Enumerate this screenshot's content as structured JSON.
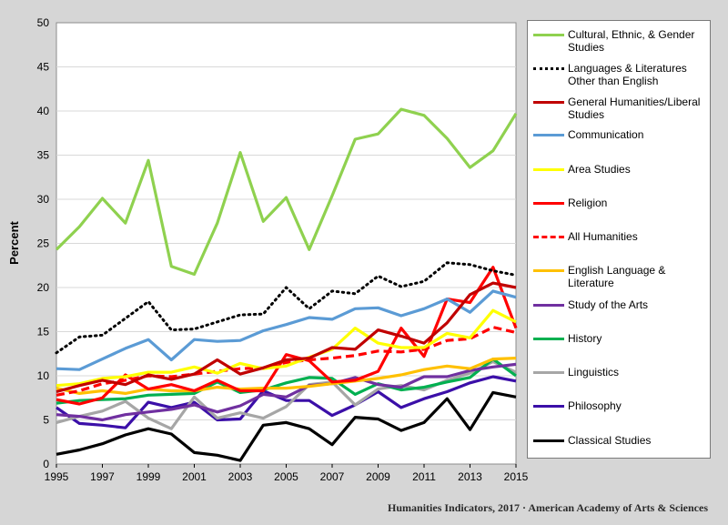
{
  "chart_data": {
    "type": "line",
    "title": "",
    "xlabel": "",
    "ylabel": "Percent",
    "xlim": [
      1995,
      2015
    ],
    "ylim": [
      0,
      50
    ],
    "x_ticks": [
      "1995",
      "1997",
      "1999",
      "2001",
      "2003",
      "2005",
      "2007",
      "2009",
      "2011",
      "2013",
      "2015"
    ],
    "y_ticks": [
      "0",
      "5",
      "10",
      "15",
      "20",
      "25",
      "30",
      "35",
      "40",
      "45",
      "50"
    ],
    "grid": true,
    "legend_position": "right",
    "x": [
      1995,
      1996,
      1997,
      1998,
      1999,
      2000,
      2001,
      2002,
      2003,
      2004,
      2005,
      2006,
      2007,
      2008,
      2009,
      2010,
      2011,
      2012,
      2013,
      2014,
      2015
    ],
    "series": [
      {
        "name": "Cultural, Ethnic, & Gender Studies",
        "color": "#8fd14f",
        "dash": "solid",
        "values": [
          24.3,
          26.9,
          30.1,
          27.3,
          34.4,
          22.4,
          21.5,
          27.3,
          35.3,
          27.5,
          30.2,
          24.3,
          30.4,
          36.8,
          37.4,
          40.2,
          39.5,
          36.9,
          33.6,
          35.5,
          39.7
        ]
      },
      {
        "name": "Languages & Literatures Other than English",
        "color": "#000000",
        "dash": "dotted",
        "values": [
          12.6,
          14.4,
          14.6,
          16.5,
          18.4,
          15.2,
          15.3,
          16.1,
          16.9,
          17.0,
          20.0,
          17.6,
          19.6,
          19.3,
          21.3,
          20.1,
          20.7,
          22.8,
          22.6,
          21.9,
          21.4
        ]
      },
      {
        "name": "General Humanities/Liberal Studies",
        "color": "#c00000",
        "dash": "solid",
        "values": [
          8.2,
          8.9,
          9.5,
          9.0,
          10.1,
          9.6,
          10.2,
          11.8,
          10.2,
          10.9,
          11.8,
          12.0,
          13.2,
          13.0,
          15.2,
          14.5,
          13.7,
          16.0,
          19.2,
          20.5,
          20.0
        ]
      },
      {
        "name": "Communication",
        "color": "#5b9bd5",
        "dash": "solid",
        "values": [
          10.8,
          10.7,
          11.9,
          13.1,
          14.1,
          11.8,
          14.1,
          13.9,
          14.0,
          15.1,
          15.8,
          16.6,
          16.4,
          17.6,
          17.7,
          16.8,
          17.6,
          18.7,
          17.2,
          19.6,
          18.9
        ]
      },
      {
        "name": "Area Studies",
        "color": "#ffff00",
        "dash": "solid",
        "values": [
          8.9,
          9.1,
          9.7,
          9.9,
          10.4,
          10.4,
          11.0,
          10.3,
          11.4,
          10.8,
          11.1,
          12.1,
          13.0,
          15.4,
          13.7,
          13.2,
          13.2,
          14.8,
          14.3,
          17.4,
          16.1
        ]
      },
      {
        "name": "Religion",
        "color": "#ff0000",
        "dash": "solid",
        "values": [
          7.3,
          6.8,
          7.5,
          10.1,
          8.5,
          9.0,
          8.3,
          9.5,
          8.3,
          8.3,
          12.4,
          11.7,
          9.3,
          9.5,
          10.5,
          15.4,
          12.2,
          18.7,
          18.3,
          22.3,
          15.4
        ]
      },
      {
        "name": "All Humanities",
        "color": "#ff0000",
        "dash": "dashed",
        "values": [
          7.8,
          8.3,
          9.1,
          9.5,
          10.0,
          9.9,
          10.2,
          10.5,
          10.8,
          10.9,
          11.5,
          11.8,
          12.0,
          12.3,
          12.8,
          12.7,
          13.0,
          14.0,
          14.2,
          15.5,
          14.9
        ]
      },
      {
        "name": "English Language & Literature",
        "color": "#ffc000",
        "dash": "solid",
        "values": [
          8.6,
          8.0,
          8.3,
          8.0,
          8.5,
          8.3,
          8.3,
          8.7,
          8.5,
          8.6,
          8.6,
          8.8,
          9.1,
          9.4,
          9.7,
          10.1,
          10.7,
          11.1,
          10.8,
          11.9,
          12.0
        ]
      },
      {
        "name": "Study of the Arts",
        "color": "#7030a0",
        "dash": "solid",
        "values": [
          5.6,
          5.4,
          5.0,
          5.6,
          5.9,
          6.2,
          6.7,
          5.9,
          6.6,
          7.9,
          7.6,
          8.9,
          9.1,
          9.8,
          9.0,
          8.7,
          9.9,
          9.9,
          10.6,
          11.0,
          11.3
        ]
      },
      {
        "name": "History",
        "color": "#00b050",
        "dash": "solid",
        "values": [
          6.9,
          7.2,
          7.3,
          7.4,
          7.8,
          7.9,
          8.0,
          9.3,
          8.1,
          8.4,
          9.2,
          9.8,
          9.7,
          7.9,
          9.1,
          8.4,
          8.7,
          9.3,
          9.8,
          11.9,
          10.0
        ]
      },
      {
        "name": "Linguistics",
        "color": "#a6a6a6",
        "dash": "solid",
        "values": [
          4.7,
          5.4,
          6.0,
          7.1,
          5.2,
          4.0,
          7.6,
          5.2,
          5.8,
          5.2,
          6.5,
          9.0,
          9.3,
          6.7,
          8.5,
          8.9,
          8.4,
          9.5,
          10.3,
          11.6,
          10.4
        ]
      },
      {
        "name": "Philosophy",
        "color": "#3b0fa8",
        "dash": "solid",
        "values": [
          6.4,
          4.6,
          4.4,
          4.1,
          7.0,
          6.4,
          7.0,
          5.0,
          5.1,
          8.3,
          7.2,
          7.2,
          5.5,
          6.7,
          8.2,
          6.4,
          7.4,
          8.2,
          9.2,
          9.9,
          9.4
        ]
      },
      {
        "name": "Classical Studies",
        "color": "#000000",
        "dash": "solid",
        "values": [
          1.1,
          1.6,
          2.3,
          3.3,
          4.0,
          3.4,
          1.3,
          1.0,
          0.4,
          4.4,
          4.7,
          4.0,
          2.2,
          5.3,
          5.1,
          3.8,
          4.7,
          7.4,
          3.9,
          8.1,
          7.6
        ]
      }
    ]
  },
  "legend": {
    "items": [
      {
        "label": "Cultural, Ethnic, & Gender Studies"
      },
      {
        "label": "Languages & Literatures Other than English"
      },
      {
        "label": "General Humanities/Liberal Studies"
      },
      {
        "label": "Communication"
      },
      {
        "label": "Area Studies"
      },
      {
        "label": "Religion"
      },
      {
        "label": "All Humanities"
      },
      {
        "label": "English Language & Literature"
      },
      {
        "label": "Study of the Arts"
      },
      {
        "label": "History"
      },
      {
        "label": "Linguistics"
      },
      {
        "label": "Philosophy"
      },
      {
        "label": "Classical Studies"
      }
    ]
  },
  "credit": "Humanities Indicators, 2017 · American Academy of Arts & Sciences"
}
